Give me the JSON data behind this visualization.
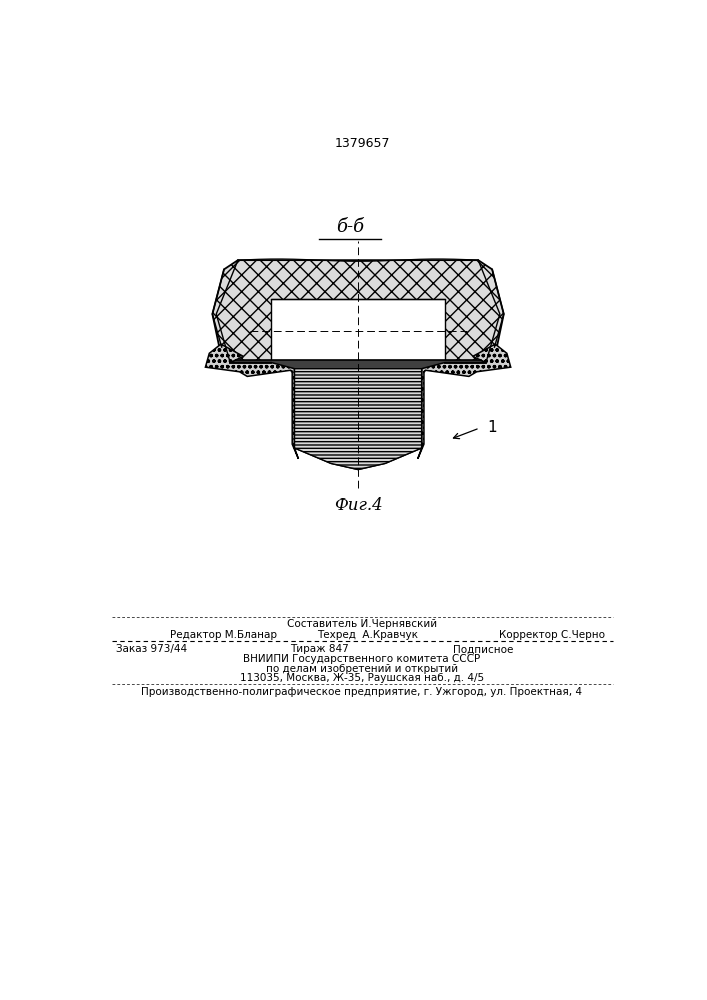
{
  "title": "1379657",
  "section_label": "б-б",
  "fig_label": "Фиг.4",
  "part_number": "1",
  "bg_color": "#ffffff",
  "line_color": "#000000",
  "footer_line1": "Составитель И.Чернявский",
  "footer_line2a": "Редактор М.Бланар",
  "footer_line2b": "Техред  А.Кравчук",
  "footer_line2c": "Корректор С.Черно",
  "footer_line3a": "Заказ 973/44",
  "footer_line3b": "Тираж 847",
  "footer_line3c": "Подписное",
  "footer_line4": "ВНИИПИ Государственного комитета СССР",
  "footer_line5": "по делам изобретений и открытий",
  "footer_line6": "113035, Москва, Ж-35, Раушская наб., д. 4/5",
  "footer_line7": "Производственно-полиграфическое предприятие, г. Ужгород, ул. Проектная, 4"
}
